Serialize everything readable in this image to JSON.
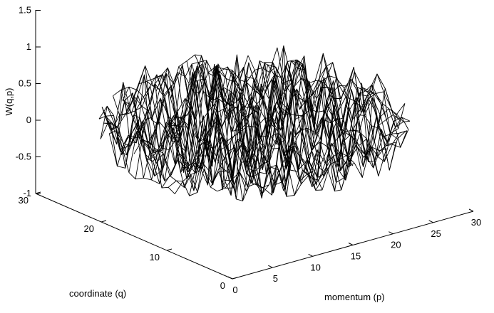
{
  "chart_data": {
    "type": "surface",
    "title": "",
    "zlabel": "W(q,p)",
    "xlabel": "momentum (p)",
    "ylabel": "coordinate (q)",
    "xlim": [
      0,
      30
    ],
    "ylim": [
      0,
      30
    ],
    "zlim": [
      -1,
      1.5
    ],
    "x_ticks": [
      "0",
      "5",
      "10",
      "15",
      "20",
      "25",
      "30"
    ],
    "y_ticks": [
      "0",
      "10",
      "20",
      "30"
    ],
    "z_ticks": [
      "-1",
      "-0.5",
      "0",
      "0.5",
      "1",
      "1.5"
    ],
    "grid_size": 30,
    "support": "disk of radius 15 centered at (15, 15) in (q, p)",
    "value_range": {
      "min": -0.95,
      "max": 1.4
    },
    "style": "black wireframe mesh, no grid, no legend"
  }
}
